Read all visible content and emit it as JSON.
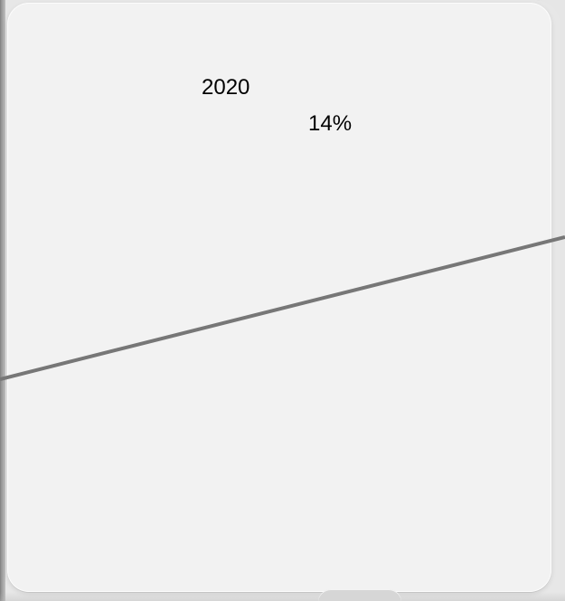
{
  "panel": {
    "year": "2020",
    "value": "14%"
  },
  "colors": {
    "background": "#f2f2f2",
    "line": "#777777",
    "text": "#000000"
  }
}
